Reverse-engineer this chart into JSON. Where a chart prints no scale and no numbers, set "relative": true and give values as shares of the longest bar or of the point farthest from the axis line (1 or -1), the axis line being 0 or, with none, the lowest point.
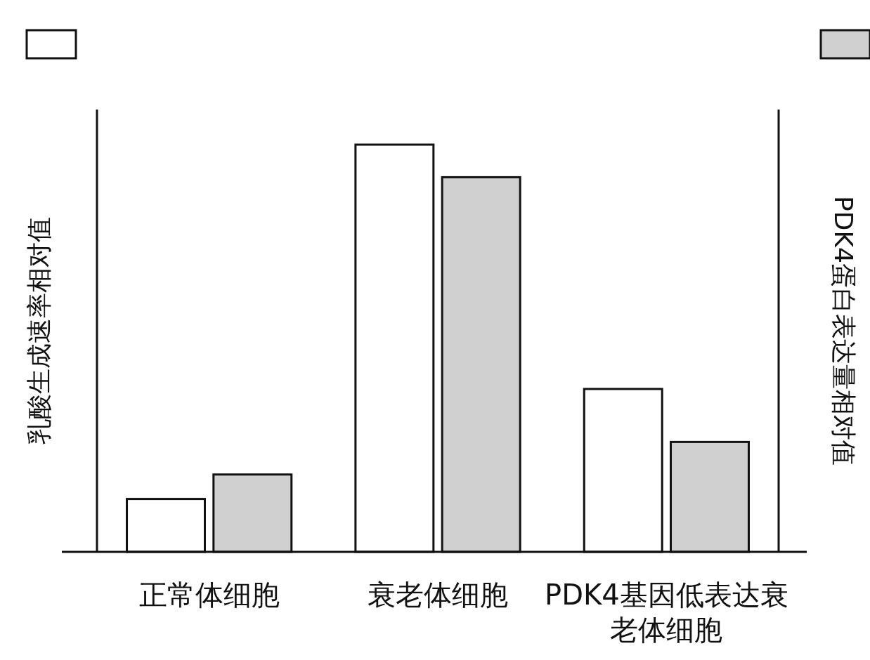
{
  "chart_data": {
    "type": "bar",
    "relative": true,
    "ylabel": "乳酸生成速率相对值",
    "y2label": "PDK4蛋白表达量相对值",
    "categories": [
      "正常体细胞",
      "衰老体细胞",
      "PDK4基因低表达衰老体细胞"
    ],
    "series": [
      {
        "color": "#ffffff",
        "values": [
          0.13,
          1,
          0.4
        ]
      },
      {
        "color": "#d0d0d0",
        "values": [
          0.19,
          0.92,
          0.27
        ]
      }
    ]
  }
}
